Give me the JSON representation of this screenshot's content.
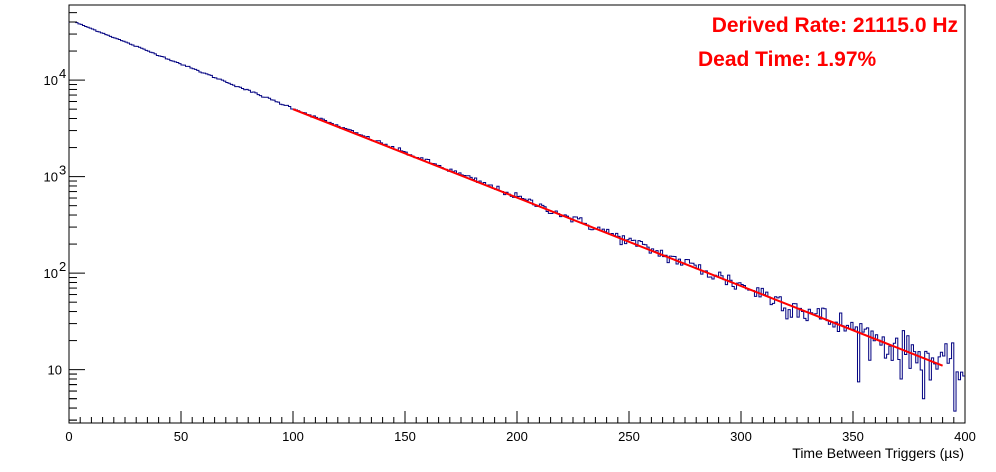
{
  "chart_data": {
    "type": "line",
    "xlabel": "Time Between Triggers (µs)",
    "ylabel": "",
    "xlim": [
      0,
      400
    ],
    "ylim": [
      2.8,
      60000
    ],
    "y_scale": "log",
    "grid": false,
    "x_ticks": [
      "0",
      "50",
      "100",
      "150",
      "200",
      "250",
      "300",
      "350",
      "400"
    ],
    "y_ticks": [
      {
        "value": 10,
        "label": "10"
      },
      {
        "value": 100,
        "base": "10",
        "exp": "2"
      },
      {
        "value": 1000,
        "base": "10",
        "exp": "3"
      },
      {
        "value": 10000,
        "base": "10",
        "exp": "4"
      }
    ],
    "annotations": [
      "Derived Rate: 21115.0 Hz",
      "Dead Time: 1.97%"
    ],
    "series": [
      {
        "style": "histogram",
        "color": "#000080",
        "bin_width": 1,
        "x_range": [
          2,
          400
        ],
        "start_value": 40000,
        "decay_per_unit": 0.0211
      },
      {
        "style": "fit",
        "color": "#ff0000",
        "x_range": [
          100,
          390
        ],
        "y_at_start": 5000,
        "decay_per_unit": 0.0211
      }
    ]
  },
  "colors": {
    "histogram": "#000080",
    "fit": "#ff0000",
    "annotation": "#ff0000",
    "axis": "#000000"
  }
}
